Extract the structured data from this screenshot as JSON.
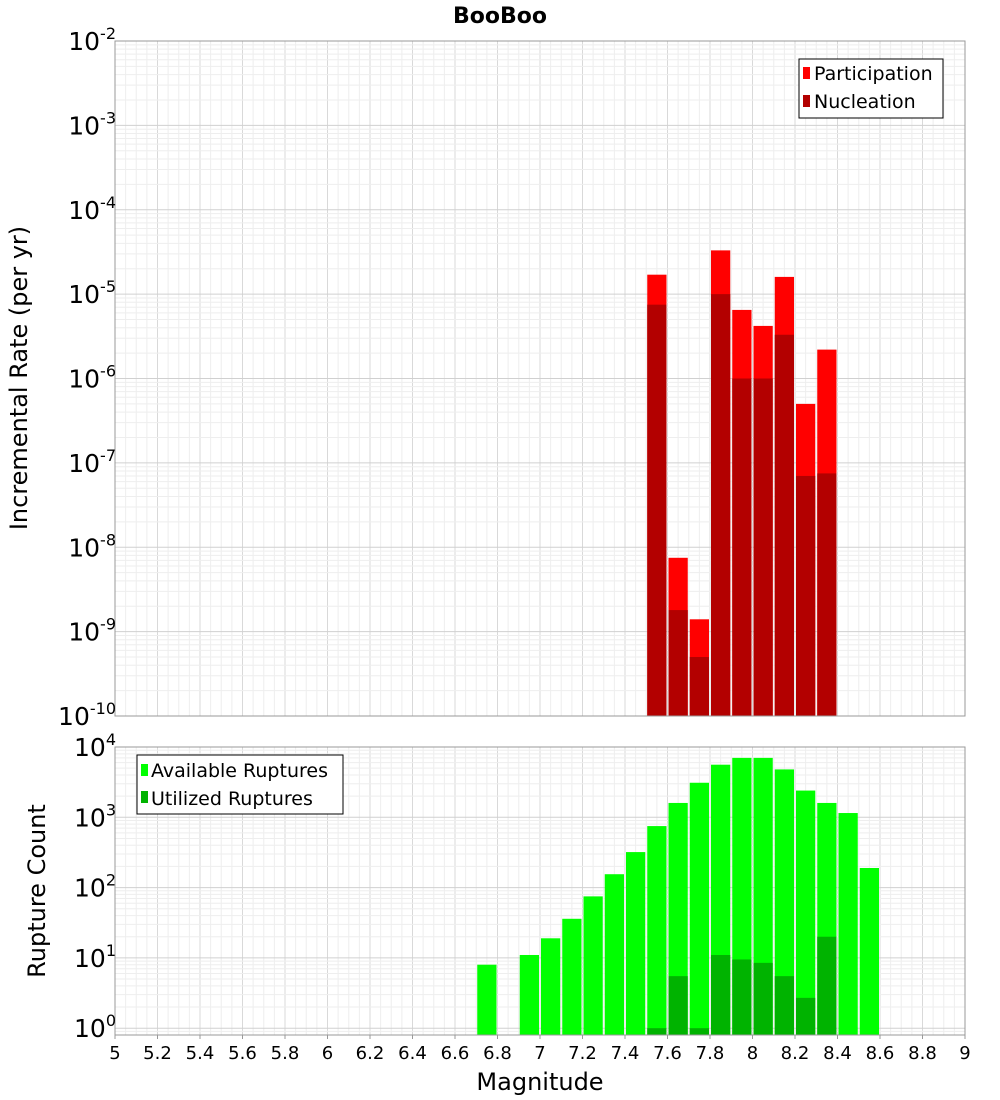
{
  "chart_data": [
    {
      "type": "bar",
      "panel": "top",
      "title": "BooBoo",
      "ylabel": "Incremental Rate (per yr)",
      "xlim": [
        5,
        9
      ],
      "ylim": [
        1e-10,
        0.01
      ],
      "yscale": "log",
      "grid": true,
      "legend_position": "top-right",
      "bin_width": 0.1,
      "ytick_exponents": [
        "-10",
        "-9",
        "-8",
        "-7",
        "-6",
        "-5",
        "-4",
        "-3",
        "-2"
      ],
      "series": [
        {
          "name": "Participation",
          "color": "#ff0000",
          "x": [
            7.55,
            7.65,
            7.75,
            7.85,
            7.95,
            8.05,
            8.15,
            8.25,
            8.35
          ],
          "values": [
            1.7e-05,
            7.5e-09,
            1.4e-09,
            3.3e-05,
            6.5e-06,
            4.2e-06,
            1.6e-05,
            5e-07,
            2.2e-06
          ]
        },
        {
          "name": "Nucleation",
          "color": "#b30000",
          "x": [
            7.55,
            7.65,
            7.75,
            7.85,
            7.95,
            8.05,
            8.15,
            8.25,
            8.35
          ],
          "values": [
            7.5e-06,
            1.8e-09,
            5e-10,
            1e-05,
            1e-06,
            1e-06,
            3.3e-06,
            7e-08,
            7.5e-08
          ]
        }
      ]
    },
    {
      "type": "bar",
      "panel": "bottom",
      "xlabel": "Magnitude",
      "ylabel": "Rupture Count",
      "xlim": [
        5,
        9
      ],
      "ylim": [
        0.8,
        10000
      ],
      "yscale": "log",
      "grid": true,
      "legend_position": "top-left",
      "bin_width": 0.1,
      "ytick_base": "10",
      "ytick_exponents": [
        "0",
        "1",
        "2",
        "3",
        "4"
      ],
      "xticks": [
        "5",
        "5.2",
        "5.4",
        "5.6",
        "5.8",
        "6",
        "6.2",
        "6.4",
        "6.6",
        "6.8",
        "7",
        "7.2",
        "7.4",
        "7.6",
        "7.8",
        "8",
        "8.2",
        "8.4",
        "8.6",
        "8.8",
        "9"
      ],
      "series": [
        {
          "name": "Available Ruptures",
          "color": "#00ff00",
          "x": [
            6.75,
            6.95,
            7.05,
            7.15,
            7.25,
            7.35,
            7.45,
            7.55,
            7.65,
            7.75,
            7.85,
            7.95,
            8.05,
            8.15,
            8.25,
            8.35,
            8.45,
            8.55
          ],
          "values": [
            8,
            11,
            19,
            36,
            75,
            155,
            320,
            750,
            1600,
            3100,
            5600,
            7000,
            7000,
            4800,
            2400,
            1600,
            1150,
            190
          ]
        },
        {
          "name": "Utilized Ruptures",
          "color": "#00b300",
          "x": [
            7.55,
            7.65,
            7.75,
            7.85,
            7.95,
            8.05,
            8.15,
            8.25,
            8.35
          ],
          "values": [
            1,
            5.5,
            1,
            11,
            9.5,
            8.5,
            5.5,
            2.7,
            20
          ]
        }
      ]
    }
  ]
}
